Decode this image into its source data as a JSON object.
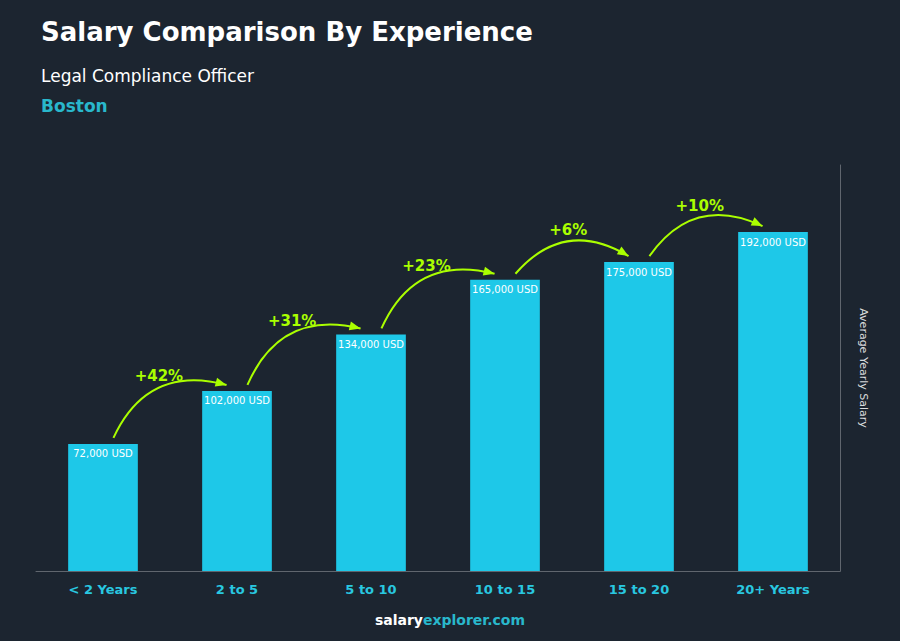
{
  "chart_data": {
    "type": "bar",
    "title": "Salary Comparison By Experience",
    "subtitle": "Legal Compliance Officer",
    "notes": [
      {
        "text": "Boston",
        "color": "#29B8CC"
      }
    ],
    "y_label": "Average Yearly Salary",
    "categories": [
      "< 2 Years",
      "2 to 5",
      "5 to 10",
      "10 to 15",
      "15 to 20",
      "20+ Years"
    ],
    "values": [
      72000,
      102000,
      134000,
      165000,
      175000,
      192000
    ],
    "value_labels": [
      "72,000 USD",
      "102,000 USD",
      "134,000 USD",
      "165,000 USD",
      "175,000 USD",
      "192,000 USD"
    ],
    "data_labels": true,
    "color": "#1EC8E8",
    "ylim": [
      0,
      230000
    ],
    "tick_labels": "x",
    "grid": false,
    "annotations": [
      {
        "text": "+42%",
        "from": "< 2 Years",
        "to": "2 to 5",
        "color": "#aaff00"
      },
      {
        "text": "+31%",
        "from": "2 to 5",
        "to": "5 to 10",
        "color": "#aaff00"
      },
      {
        "text": "+23%",
        "from": "5 to 10",
        "to": "10 to 15",
        "color": "#aaff00"
      },
      {
        "text": "+6%",
        "from": "10 to 15",
        "to": "15 to 20",
        "color": "#aaff00"
      },
      {
        "text": "+10%",
        "from": "15 to 20",
        "to": "20+ Years",
        "color": "#aaff00"
      }
    ],
    "footer": [
      {
        "text": "salary",
        "color": "#ffffff"
      },
      {
        "text": "explorer.com",
        "color": "#29B8CC"
      }
    ]
  }
}
